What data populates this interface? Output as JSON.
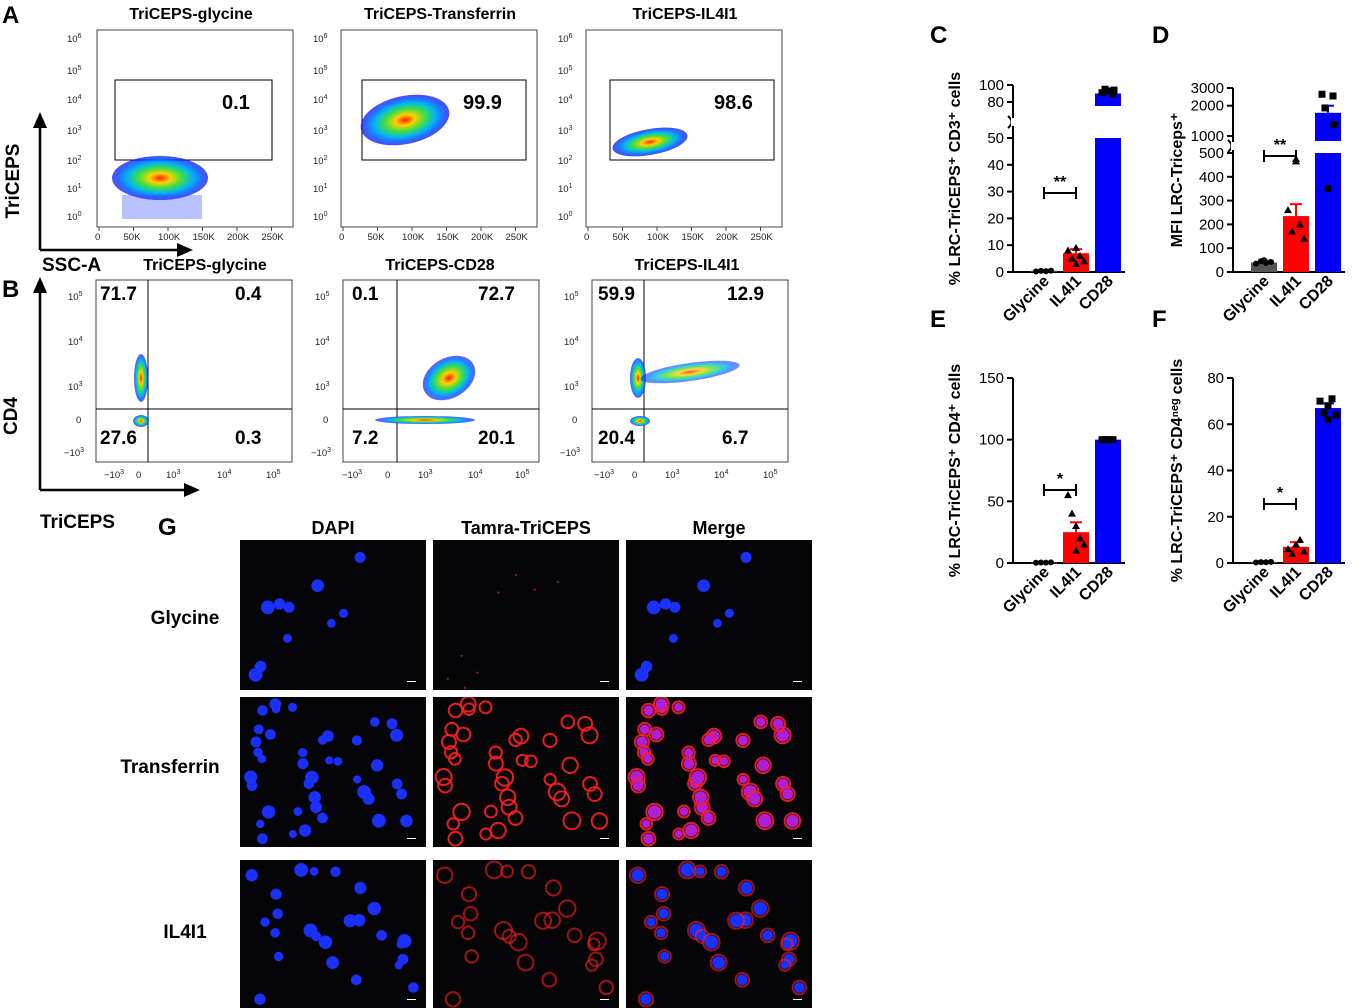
{
  "panel_letters": {
    "a": "A",
    "b": "B",
    "c": "C",
    "d": "D",
    "e": "E",
    "f": "F",
    "g": "G"
  },
  "flow_a": {
    "titles": [
      "TriCEPS-glycine",
      "TriCEPS-Transferrin",
      "TriCEPS-IL4I1"
    ],
    "gate_values": [
      "0.1",
      "99.9",
      "98.6"
    ],
    "y_axis_label": "TriCEPS",
    "x_axis_label": "SSC-A",
    "x_ticks": [
      "0",
      "50K",
      "100K",
      "150K",
      "200K",
      "250K"
    ]
  },
  "flow_b": {
    "titles": [
      "TriCEPS-glycine",
      "TriCEPS-CD28",
      "TriCEPS-IL4I1"
    ],
    "quadrants": [
      {
        "ul": "71.7",
        "ur": "0.4",
        "ll": "27.6",
        "lr": "0.3"
      },
      {
        "ul": "0.1",
        "ur": "72.7",
        "ll": "7.2",
        "lr": "20.1"
      },
      {
        "ul": "59.9",
        "ur": "12.9",
        "ll": "20.4",
        "lr": "6.7"
      }
    ],
    "y_axis_label": "CD4",
    "x_axis_label": "TriCEPS"
  },
  "microscopy": {
    "columns": [
      "DAPI",
      "Tamra-TriCEPS",
      "Merge"
    ],
    "rows": [
      "Glycine",
      "Transferrin",
      "IL4I1"
    ]
  },
  "colors": {
    "glycine": "#555555",
    "il4i1": "#ff0000",
    "cd28": "#0000ff"
  },
  "chart_data": [
    {
      "panel": "C",
      "type": "bar",
      "categories": [
        "Glycine",
        "IL4I1",
        "CD28"
      ],
      "values": [
        0.5,
        7,
        90
      ],
      "errors": [
        0.3,
        1.5,
        2
      ],
      "ylabel": "% LRC-TriCEPS⁺ CD3⁺ cells",
      "y_ticks_lower": [
        "0",
        "10",
        "20",
        "30",
        "40",
        "50"
      ],
      "y_ticks_upper": [
        "80",
        "100"
      ],
      "axis_break": true,
      "significance": {
        "label": "**",
        "from": "Glycine",
        "to": "IL4I1"
      }
    },
    {
      "panel": "D",
      "type": "bar",
      "categories": [
        "Glycine",
        "IL4I1",
        "CD28"
      ],
      "values": [
        40,
        235,
        1700
      ],
      "errors": [
        8,
        50,
        300
      ],
      "ylabel": "MFI LRC-Triceps⁺",
      "y_ticks_lower": [
        "0",
        "100",
        "200",
        "300",
        "400",
        "500"
      ],
      "y_ticks_upper": [
        "1000",
        "2000",
        "3000"
      ],
      "axis_break": true,
      "significance": {
        "label": "**",
        "from": "Glycine",
        "to": "IL4I1"
      }
    },
    {
      "panel": "E",
      "type": "bar",
      "categories": [
        "Glycine",
        "IL4I1",
        "CD28"
      ],
      "values": [
        0.5,
        25,
        100
      ],
      "errors": [
        0.3,
        8,
        0.5
      ],
      "ylabel": "% LRC-TriCEPS⁺ CD4⁺ cells",
      "y_ticks": [
        "0",
        "50",
        "100",
        "150"
      ],
      "ylim": [
        0,
        150
      ],
      "significance": {
        "label": "*",
        "from": "Glycine",
        "to": "IL4I1"
      }
    },
    {
      "panel": "F",
      "type": "bar",
      "categories": [
        "Glycine",
        "IL4I1",
        "CD28"
      ],
      "values": [
        0.5,
        7,
        67
      ],
      "errors": [
        0.3,
        2,
        2
      ],
      "ylabel": "% LRC-TriCEPS⁺ CD4ⁿᵉᵍ cells",
      "y_ticks": [
        "0",
        "20",
        "40",
        "60",
        "80"
      ],
      "ylim": [
        0,
        80
      ],
      "significance": {
        "label": "*",
        "from": "Glycine",
        "to": "IL4I1"
      }
    }
  ]
}
